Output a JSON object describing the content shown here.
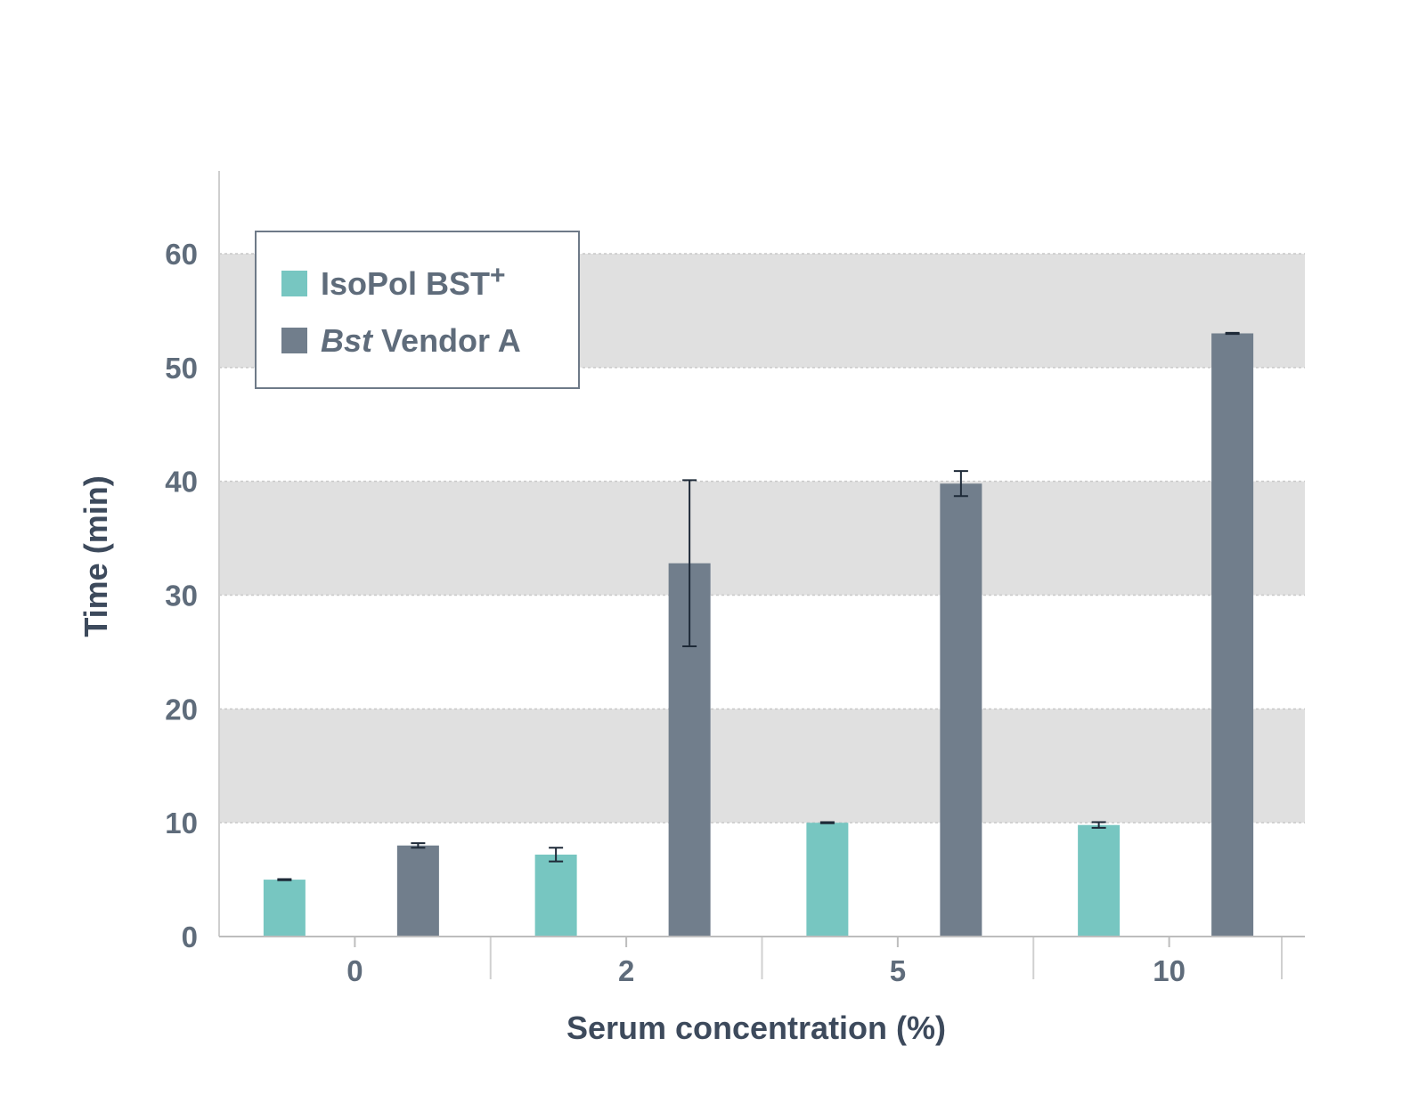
{
  "chart_data": {
    "type": "bar",
    "categories": [
      "0",
      "2",
      "5",
      "10"
    ],
    "xlabel": "Serum concentration (%)",
    "ylabel": "Time (min)",
    "ylim": [
      0,
      60
    ],
    "yticks": [
      0,
      10,
      20,
      30,
      40,
      50,
      60
    ],
    "grid": "alternating horizontal bands",
    "legend_position": "top-left",
    "series": [
      {
        "legend_main": "IsoPol BST",
        "legend_sup": "+",
        "color": "#77c6c1",
        "values": [
          5.0,
          7.2,
          10.0,
          9.8
        ],
        "errors": [
          0.05,
          0.6,
          0.05,
          0.25
        ]
      },
      {
        "legend_italic": "Bst",
        "legend_rest": " Vendor A",
        "color": "#717e8c",
        "values": [
          8.0,
          32.8,
          39.8,
          53.0
        ],
        "errors": [
          0.2,
          7.3,
          1.1,
          0.05
        ]
      }
    ]
  }
}
